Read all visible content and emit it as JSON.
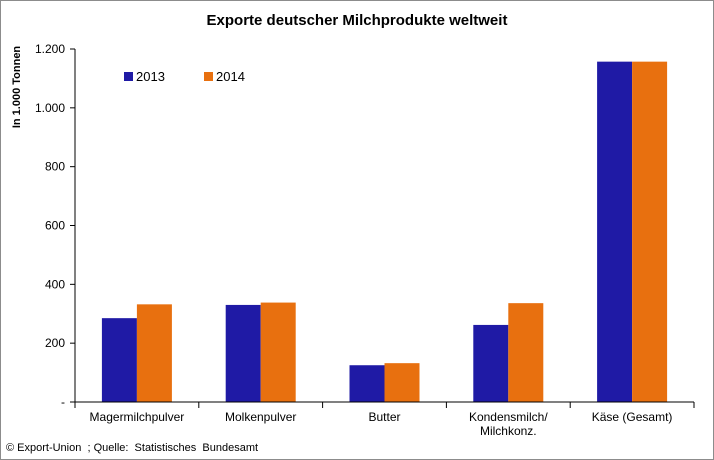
{
  "chart_data": {
    "type": "bar",
    "title": "Exporte deutscher Milchprodukte weltweit",
    "ylabel": "In 1.000 Tonnen",
    "xlabel": "",
    "categories": [
      [
        "Magermilchpulver"
      ],
      [
        "Molkenpulver"
      ],
      [
        "Butter"
      ],
      [
        "Kondensmilch/",
        "Milchkonz."
      ],
      [
        "Käse (Gesamt)"
      ]
    ],
    "series": [
      {
        "name": "2013",
        "color": "#1f1aa5",
        "values": [
          285,
          330,
          125,
          262,
          1157
        ]
      },
      {
        "name": "2014",
        "color": "#e8700f",
        "values": [
          332,
          338,
          132,
          336,
          1157
        ]
      }
    ],
    "ylim": [
      0,
      1200
    ],
    "yticks": [
      {
        "value": 0,
        "label": "-"
      },
      {
        "value": 200,
        "label": "200"
      },
      {
        "value": 400,
        "label": "400"
      },
      {
        "value": 600,
        "label": "600"
      },
      {
        "value": 800,
        "label": "800"
      },
      {
        "value": 1000,
        "label": "1.000"
      },
      {
        "value": 1200,
        "label": "1.200"
      }
    ],
    "grid": false,
    "legend": "top-left"
  },
  "source": "© Export-Union  ; Quelle:  Statistisches  Bundesamt"
}
